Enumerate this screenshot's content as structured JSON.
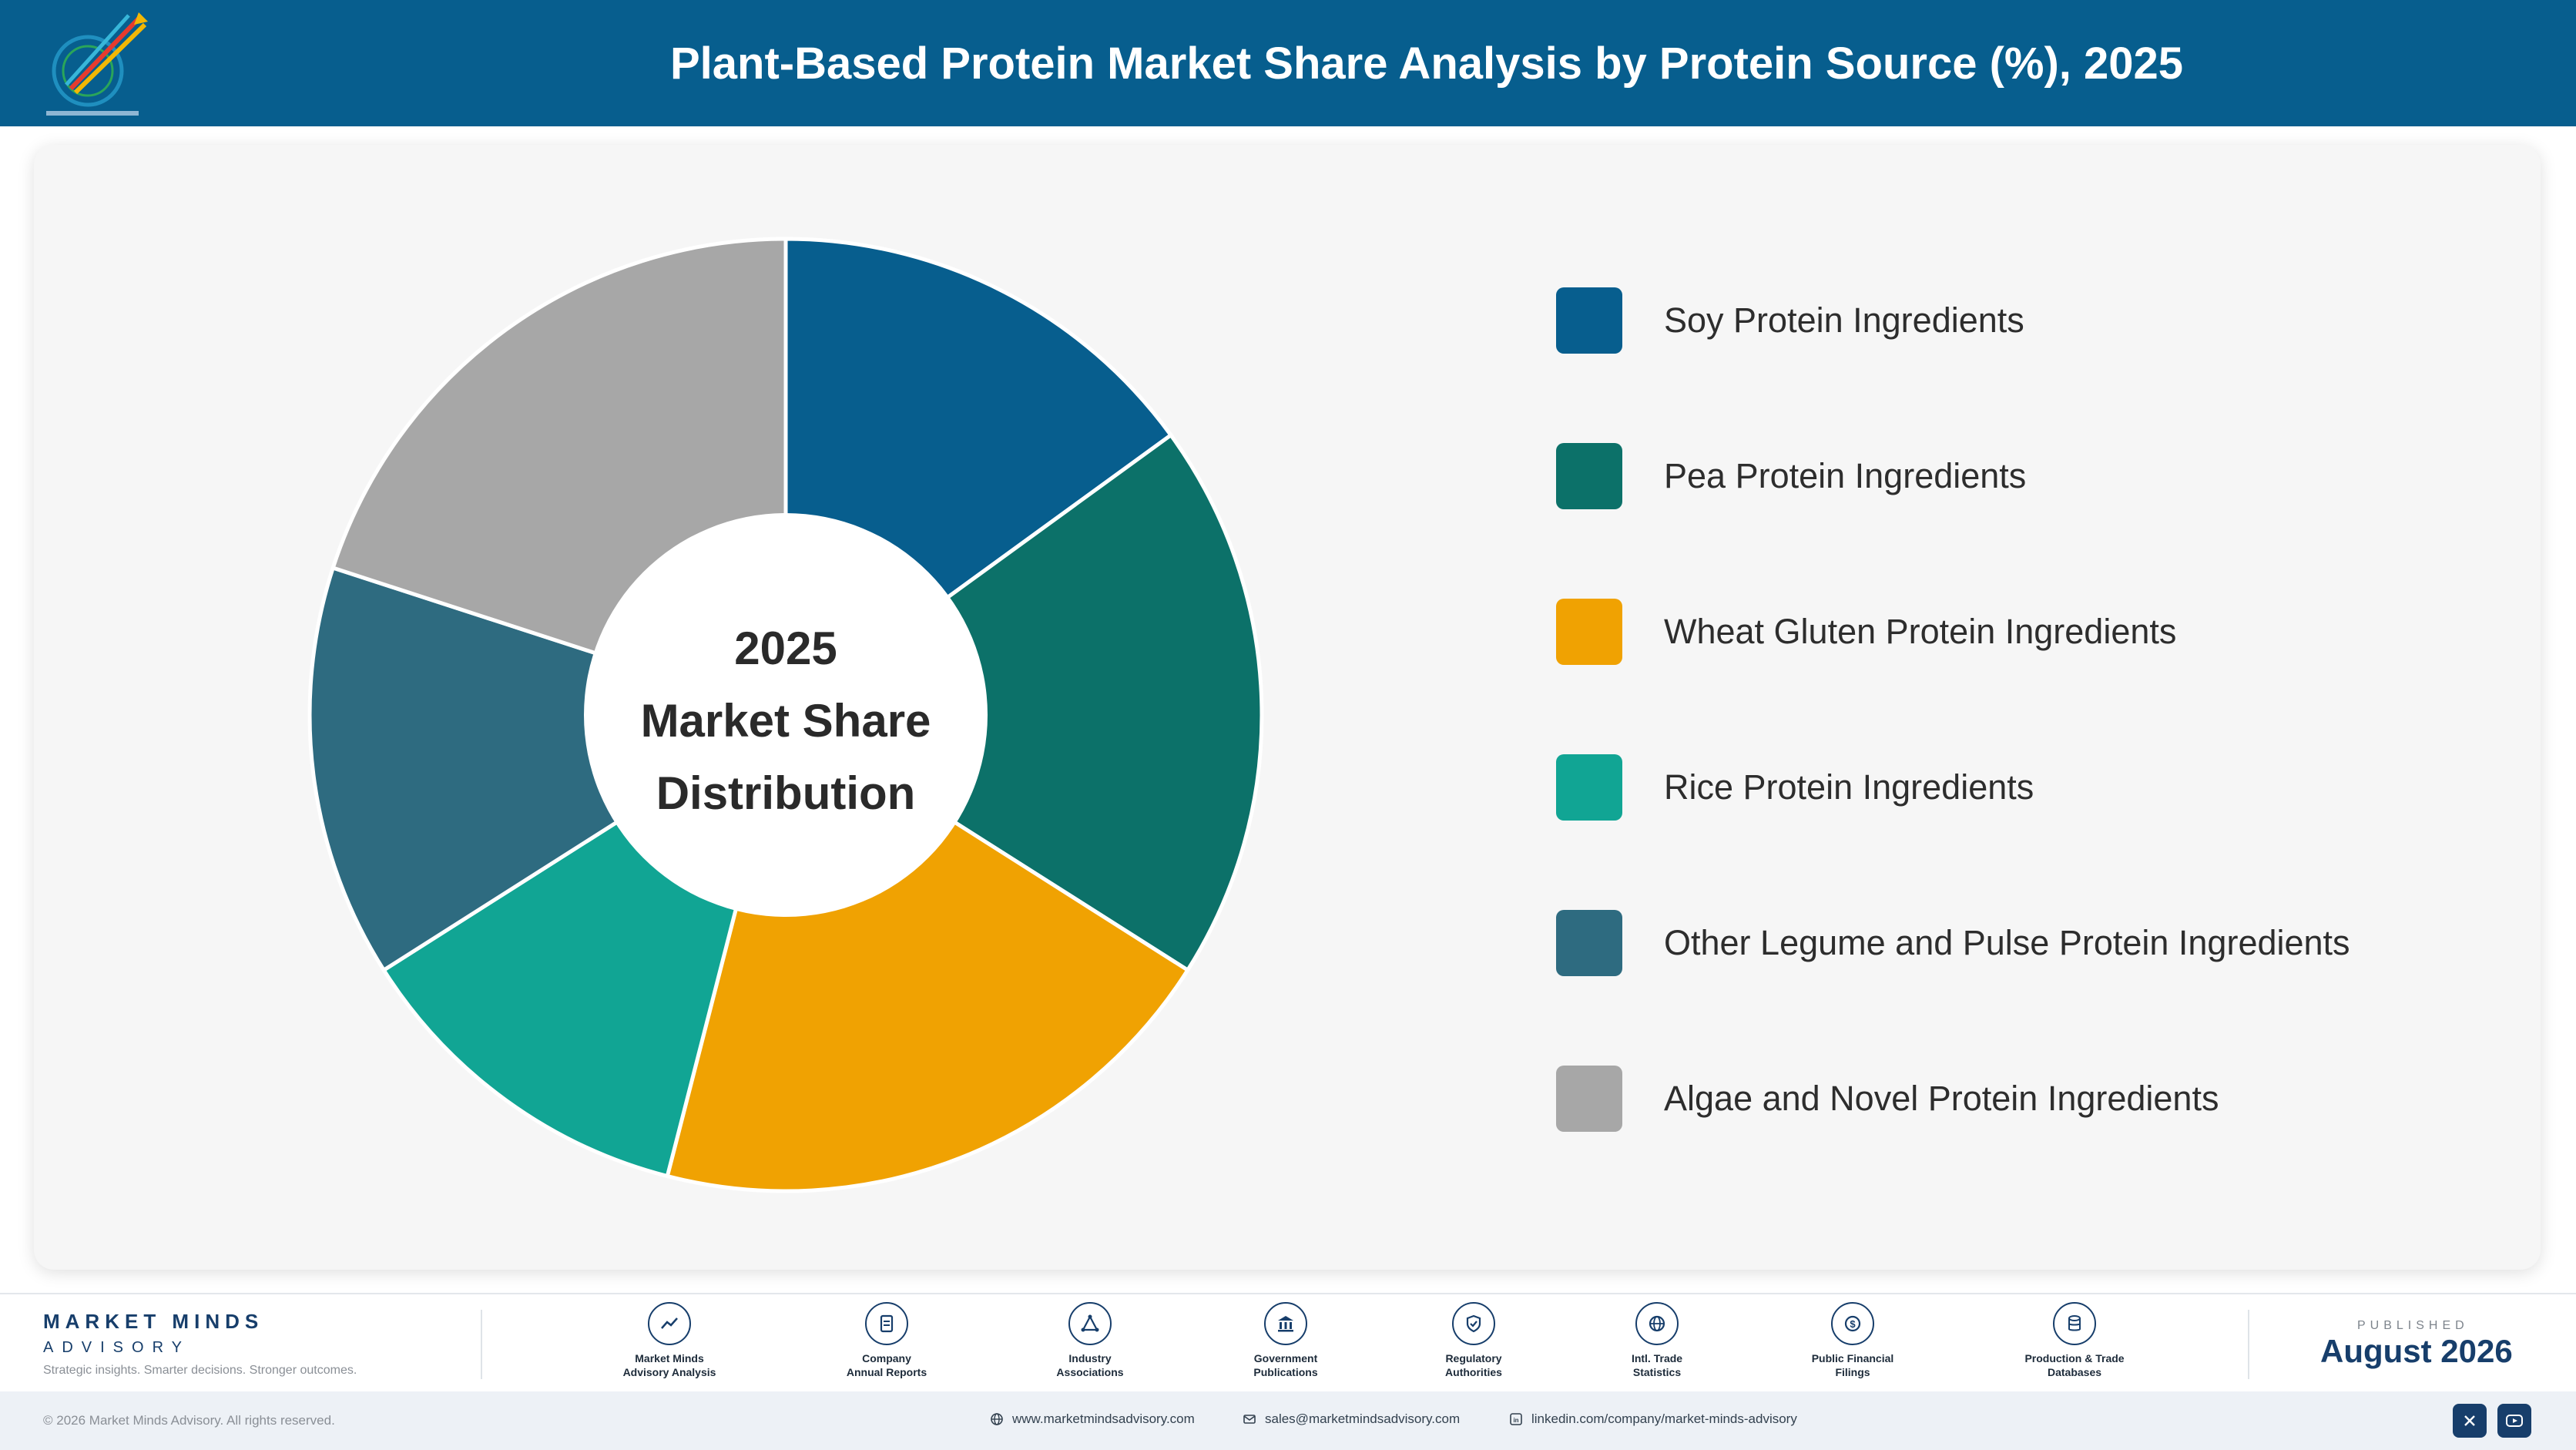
{
  "header": {
    "title": "Plant-Based Protein Market Share Analysis by Protein Source (%), 2025"
  },
  "center_label": [
    "2025",
    "Market Share",
    "Distribution"
  ],
  "chart_data": {
    "type": "pie",
    "title": "Plant-Based Protein Market Share Analysis by Protein Source (%), 2025",
    "categories": [
      "Soy Protein Ingredients",
      "Pea Protein Ingredients",
      "Wheat Gluten Protein Ingredients",
      "Rice Protein Ingredients",
      "Other Legume and Pulse Protein Ingredients",
      "Algae and Novel Protein Ingredients"
    ],
    "values": [
      15,
      19,
      20,
      12,
      14,
      20
    ],
    "colors": [
      "#075e8e",
      "#0c7169",
      "#f0a202",
      "#11a594",
      "#2e6b80",
      "#a7a7a7"
    ],
    "legend": "right",
    "donut": true
  },
  "footer": {
    "brand": {
      "name": "MARKET MINDS",
      "sub": "ADVISORY",
      "tagline": "Strategic insights. Smarter decisions. Stronger outcomes."
    },
    "sources": [
      {
        "label": "Market Minds\nAdvisory Analysis",
        "icon": "trend-chart-icon"
      },
      {
        "label": "Company\nAnnual Reports",
        "icon": "document-icon"
      },
      {
        "label": "Industry\nAssociations",
        "icon": "network-icon"
      },
      {
        "label": "Government\nPublications",
        "icon": "government-building-icon"
      },
      {
        "label": "Regulatory\nAuthorities",
        "icon": "shield-check-icon"
      },
      {
        "label": "Intl. Trade\nStatistics",
        "icon": "globe-icon"
      },
      {
        "label": "Public Financial\nFilings",
        "icon": "dollar-coin-icon"
      },
      {
        "label": "Production & Trade\nDatabases",
        "icon": "database-icon"
      }
    ],
    "published_label": "PUBLISHED",
    "published_date": "August 2026",
    "copyright": "© 2026 Market Minds Advisory. All rights reserved.",
    "website": "www.marketmindsadvisory.com",
    "email": "sales@marketmindsadvisory.com",
    "linkedin": "linkedin.com/company/market-minds-advisory",
    "social": [
      "x-icon",
      "youtube-icon"
    ],
    "accent_color": "#173e6b"
  }
}
